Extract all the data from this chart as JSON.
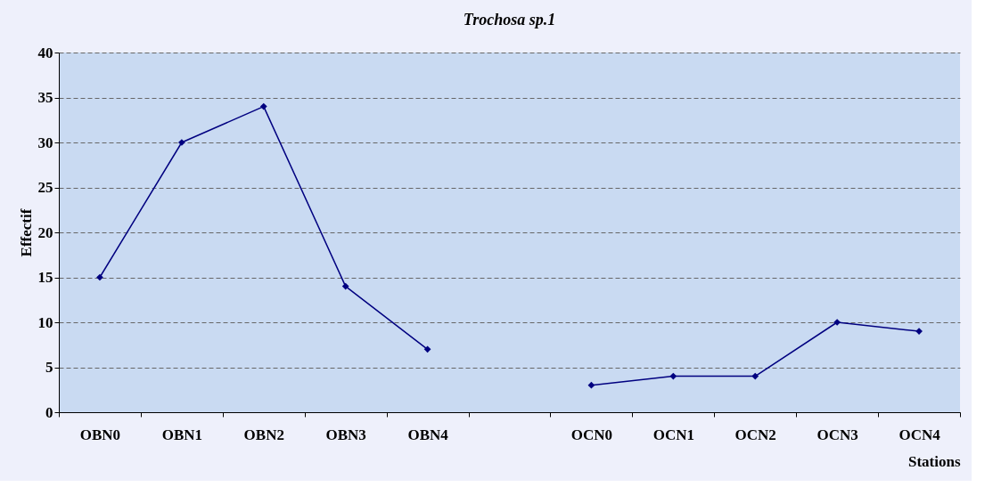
{
  "chart_data": {
    "type": "line",
    "title": "Trochosa sp.1",
    "xlabel": "Stations",
    "ylabel": "Effectif",
    "categories": [
      "OBN0",
      "OBN1",
      "OBN2",
      "OBN3",
      "OBN4",
      null,
      "OCN0",
      "OCN1",
      "OCN2",
      "OCN3",
      "OCN4"
    ],
    "series": [
      {
        "color": "#000080",
        "values": [
          15,
          30,
          34,
          14,
          7,
          null,
          3,
          4,
          4,
          10,
          9
        ]
      }
    ],
    "ylim": [
      0,
      40
    ],
    "yticks": [
      0,
      5,
      10,
      15,
      20,
      25,
      30,
      35,
      40
    ],
    "grid": "y",
    "legend": false,
    "marker": "diamond",
    "line_style": "solid"
  }
}
